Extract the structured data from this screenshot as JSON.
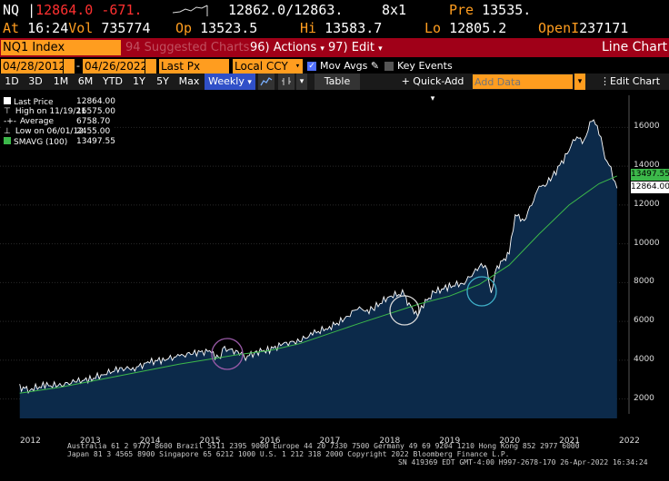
{
  "quote": {
    "ticker": "NQ",
    "last": "12864.0",
    "change": "-671.",
    "bid": "12862.0",
    "ask": "12863.",
    "size": "8x1",
    "pre_label": "Pre",
    "pre_value": "13535.",
    "at_label": "At",
    "time": "16:24",
    "vol_label": "Vol",
    "vol_value": "735774",
    "op_label": "Op",
    "op_value": "13523.5",
    "hi_label": "Hi",
    "hi_value": "13583.7",
    "lo_label": "Lo",
    "lo_value": "12805.2",
    "openi_label": "OpenI",
    "openi_value": "237171"
  },
  "header": {
    "security": "NQ1 Index",
    "suggested": "94 Suggested Charts",
    "actions": "96) Actions",
    "edit": "97) Edit",
    "chart_type": "Line Chart"
  },
  "controls": {
    "start_date": "04/28/2012",
    "end_date": "04/26/2022",
    "field": "Last Px",
    "currency": "Local CCY",
    "mov_avgs": "Mov Avgs",
    "key_events": "Key Events"
  },
  "toolbar": {
    "periods": [
      "1D",
      "3D",
      "1M",
      "6M",
      "YTD",
      "1Y",
      "5Y",
      "Max"
    ],
    "frequency": "Weekly",
    "table": "Table",
    "quick_add": "+ Quick-Add",
    "add_data_placeholder": "Add Data",
    "edit_chart": "Edit Chart"
  },
  "legend": {
    "last_price_label": "Last Price",
    "last_price_value": "12864.00",
    "high_label": "High on 11/19/21",
    "high_value": "16575.00",
    "avg_label": "Average",
    "avg_value": "6758.70",
    "low_label": "Low on 06/01/12",
    "low_value": "2455.00",
    "smavg_label": "SMAVG (100)",
    "smavg_value": "13497.55"
  },
  "badges": {
    "smavg": "13497.55",
    "last": "12864.00"
  },
  "chart_data": {
    "type": "area",
    "x_labels": [
      "2012",
      "2013",
      "2014",
      "2015",
      "2016",
      "2017",
      "2018",
      "2019",
      "2020",
      "2021",
      "2022"
    ],
    "y_ticks": [
      2000,
      4000,
      6000,
      8000,
      10000,
      12000,
      14000,
      16000
    ],
    "ylim": [
      1000,
      17000
    ],
    "grid": true,
    "legend_position": "top-left",
    "colors": {
      "price": "#ffffff",
      "area": "#0c2a4a",
      "smavg": "#3cb84a",
      "circle_purple": "#9a5aa8",
      "circle_white": "#d8d8d8",
      "circle_cyan": "#3fb0c8"
    },
    "series": [
      {
        "name": "Last Price",
        "x": [
          2012.33,
          2012.5,
          2012.75,
          2013.0,
          2013.25,
          2013.5,
          2013.75,
          2014.0,
          2014.25,
          2014.5,
          2014.75,
          2015.0,
          2015.25,
          2015.5,
          2015.65,
          2015.75,
          2016.0,
          2016.1,
          2016.25,
          2016.5,
          2016.75,
          2017.0,
          2017.25,
          2017.5,
          2017.75,
          2018.0,
          2018.1,
          2018.25,
          2018.5,
          2018.75,
          2018.8,
          2018.97,
          2019.1,
          2019.25,
          2019.5,
          2019.75,
          2020.0,
          2020.1,
          2020.2,
          2020.3,
          2020.5,
          2020.6,
          2020.75,
          2021.0,
          2021.1,
          2021.25,
          2021.5,
          2021.6,
          2021.75,
          2021.88,
          2022.0,
          2022.1,
          2022.2,
          2022.3
        ],
        "y": [
          2600,
          2500,
          2700,
          2700,
          2900,
          3000,
          3300,
          3550,
          3600,
          3900,
          4050,
          4200,
          4400,
          4450,
          4100,
          4600,
          4400,
          4150,
          4400,
          4550,
          4850,
          5000,
          5400,
          5700,
          6100,
          6800,
          6500,
          6700,
          7300,
          7450,
          7000,
          6300,
          7000,
          7500,
          7800,
          8000,
          8800,
          9000,
          7500,
          8800,
          9500,
          11500,
          11200,
          12900,
          13000,
          13600,
          14800,
          15500,
          15300,
          16500,
          15800,
          14500,
          13800,
          12864
        ]
      },
      {
        "name": "SMAVG (100)",
        "x": [
          2012.33,
          2013.0,
          2014.0,
          2015.0,
          2016.0,
          2016.5,
          2017.0,
          2018.0,
          2019.0,
          2019.5,
          2020.0,
          2020.5,
          2021.0,
          2021.5,
          2022.0,
          2022.3
        ],
        "y": [
          2300,
          2600,
          3200,
          3800,
          4300,
          4500,
          4850,
          5900,
          6900,
          7300,
          7900,
          8900,
          10500,
          12000,
          13100,
          13497.55
        ]
      }
    ]
  },
  "footer": {
    "line1": "Australia 61 2 9777 8600 Brazil 5511 2395 9000 Europe 44 20 7330 7500 Germany 49 69 9204 1210 Hong Kong 852 2977 6000",
    "line2": "Japan 81 3 4565 8900        Singapore 65 6212 1000      U.S. 1 212 318 2000          Copyright 2022 Bloomberg Finance L.P.",
    "line3": "SN 419369 EDT  GMT-4:00 H997-2678-170 26-Apr-2022 16:34:24"
  }
}
